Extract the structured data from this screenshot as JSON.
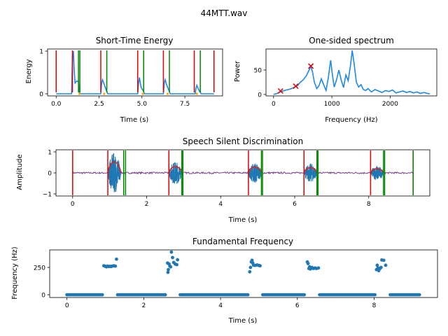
{
  "figure_title": "44MTT.wav",
  "colors": {
    "signal": "#1f77b4",
    "energy": "#1e88e5",
    "start": "#e00000",
    "end": "#008800",
    "marker": "#ffa500",
    "envelope": "#d62728",
    "noise": "#7b3f8c",
    "pitch": "#1f77b4"
  },
  "chart_data": [
    {
      "id": "energy",
      "type": "line",
      "title": "Short-Time Energy",
      "xlabel": "Time (s)",
      "ylabel": "Energy",
      "xlim": [
        -0.5,
        9.7
      ],
      "ylim": [
        -0.05,
        1.05
      ],
      "xticks": [
        0,
        2.5,
        5,
        7.5
      ],
      "xtick_labels": [
        "0.0",
        "2.5",
        "5.0",
        "7.5"
      ],
      "yticks": [
        0,
        1
      ],
      "ytick_labels": [
        "0",
        "1"
      ],
      "x": [
        0,
        0.9,
        0.95,
        1.0,
        1.05,
        1.1,
        1.2,
        1.3,
        1.35,
        1.4,
        2.6,
        2.65,
        2.7,
        2.8,
        2.95,
        3.0,
        4.75,
        4.8,
        4.85,
        4.95,
        5.1,
        5.15,
        6.25,
        6.3,
        6.35,
        6.45,
        6.6,
        6.65,
        8.1,
        8.15,
        8.2,
        8.3,
        8.4,
        8.45,
        9.2
      ],
      "y": [
        0,
        0,
        0.9,
        1.0,
        0.55,
        0.25,
        0.3,
        0.28,
        0.05,
        0,
        0,
        0.25,
        0.33,
        0.22,
        0.05,
        0,
        0,
        0.25,
        0.38,
        0.15,
        0.05,
        0,
        0,
        0.25,
        0.33,
        0.2,
        0.05,
        0,
        0,
        0.13,
        0.2,
        0.1,
        0.03,
        0,
        0
      ],
      "start_lines": [
        0,
        0.95,
        2.6,
        4.75,
        6.25,
        8.05,
        9.2
      ],
      "end_lines": [
        1.3,
        1.38,
        2.95,
        5.1,
        6.6,
        8.4
      ]
    },
    {
      "id": "spectrum",
      "type": "line",
      "title": "One-sided spectrum",
      "xlabel": "Frequency (Hz)",
      "ylabel": "Power",
      "xlim": [
        -130,
        2800
      ],
      "ylim": [
        -3,
        93
      ],
      "xticks": [
        0,
        1000,
        2000
      ],
      "xtick_labels": [
        "0",
        "1000",
        "2000"
      ],
      "yticks": [
        0,
        50
      ],
      "ytick_labels": [
        "0",
        "50"
      ],
      "x": [
        0,
        60,
        110,
        160,
        210,
        260,
        310,
        360,
        410,
        460,
        510,
        560,
        610,
        640,
        670,
        700,
        740,
        780,
        820,
        860,
        900,
        940,
        980,
        1010,
        1040,
        1080,
        1120,
        1160,
        1200,
        1240,
        1280,
        1320,
        1350,
        1380,
        1420,
        1460,
        1500,
        1540,
        1580,
        1620,
        1680,
        1740,
        1800,
        1860,
        1920,
        1980,
        2040,
        2100,
        2160,
        2220,
        2280,
        2340,
        2400,
        2460,
        2520,
        2580,
        2640,
        2680
      ],
      "y": [
        0,
        2,
        5,
        7,
        9,
        10,
        12,
        15,
        18,
        25,
        30,
        38,
        50,
        58,
        45,
        25,
        12,
        18,
        32,
        20,
        8,
        35,
        70,
        40,
        15,
        30,
        50,
        30,
        14,
        40,
        28,
        60,
        90,
        65,
        25,
        15,
        20,
        10,
        8,
        12,
        5,
        10,
        7,
        4,
        8,
        6,
        9,
        3,
        5,
        7,
        4,
        6,
        3,
        5,
        2,
        4,
        2,
        1
      ],
      "markers": {
        "x": [
          120,
          380,
          640
        ],
        "y": [
          7,
          17,
          58
        ]
      }
    },
    {
      "id": "discrimination",
      "type": "line",
      "title": "Speech Silent Discrimination",
      "xlabel": "Time (s)",
      "ylabel": "Amplitude",
      "xlim": [
        -0.45,
        9.65
      ],
      "ylim": [
        -1.1,
        1.1
      ],
      "xticks": [
        0,
        2,
        4,
        6,
        8
      ],
      "xtick_labels": [
        "0",
        "2",
        "4",
        "6",
        "8"
      ],
      "yticks": [
        -1,
        0,
        1
      ],
      "ytick_labels": [
        "−1",
        "0",
        "1"
      ],
      "segments": [
        {
          "start": 0.95,
          "end": 1.3,
          "amp": 0.95
        },
        {
          "start": 2.6,
          "end": 2.95,
          "amp": 0.55
        },
        {
          "start": 4.75,
          "end": 5.1,
          "amp": 0.5
        },
        {
          "start": 6.25,
          "end": 6.6,
          "amp": 0.45
        },
        {
          "start": 8.05,
          "end": 8.4,
          "amp": 0.35
        }
      ],
      "start_lines": [
        0,
        0.95,
        2.6,
        4.75,
        6.25,
        8.05,
        9.2
      ],
      "end_lines": [
        1.38,
        1.43,
        2.95,
        2.98,
        5.1,
        5.13,
        6.6,
        6.63,
        8.4,
        8.43,
        9.2
      ]
    },
    {
      "id": "f0",
      "type": "scatter",
      "title": "Fundamental Frequency",
      "xlabel": "Time (s)",
      "ylabel": "Frequency (Hz)",
      "xlim": [
        -0.45,
        9.65
      ],
      "ylim": [
        -25,
        410
      ],
      "xticks": [
        0,
        2,
        4,
        6,
        8
      ],
      "xtick_labels": [
        "0",
        "2",
        "4",
        "6",
        "8"
      ],
      "yticks": [
        0,
        250
      ],
      "ytick_labels": [
        "0",
        "250"
      ],
      "zero_ranges": [
        [
          0,
          0.95
        ],
        [
          1.32,
          2.58
        ],
        [
          2.95,
          4.72
        ],
        [
          5.1,
          6.22
        ],
        [
          6.58,
          8.03
        ],
        [
          8.42,
          9.2
        ]
      ],
      "voiced_points": [
        [
          0.96,
          265
        ],
        [
          1.0,
          260
        ],
        [
          1.03,
          255
        ],
        [
          1.06,
          262
        ],
        [
          1.09,
          258
        ],
        [
          1.12,
          260
        ],
        [
          1.15,
          258
        ],
        [
          1.18,
          262
        ],
        [
          1.22,
          265
        ],
        [
          1.26,
          262
        ],
        [
          1.29,
          325
        ],
        [
          2.62,
          290
        ],
        [
          2.63,
          205
        ],
        [
          2.64,
          230
        ],
        [
          2.66,
          280
        ],
        [
          2.68,
          262
        ],
        [
          2.7,
          255
        ],
        [
          2.72,
          390
        ],
        [
          2.75,
          340
        ],
        [
          2.78,
          295
        ],
        [
          2.82,
          280
        ],
        [
          2.86,
          275
        ],
        [
          2.88,
          320
        ],
        [
          4.76,
          210
        ],
        [
          4.78,
          250
        ],
        [
          4.8,
          300
        ],
        [
          4.82,
          315
        ],
        [
          4.84,
          290
        ],
        [
          4.86,
          270
        ],
        [
          4.9,
          268
        ],
        [
          4.95,
          272
        ],
        [
          5.0,
          268
        ],
        [
          5.03,
          265
        ],
        [
          6.26,
          300
        ],
        [
          6.28,
          285
        ],
        [
          6.3,
          240
        ],
        [
          6.32,
          255
        ],
        [
          6.34,
          235
        ],
        [
          6.38,
          250
        ],
        [
          6.42,
          240
        ],
        [
          6.46,
          245
        ],
        [
          6.5,
          240
        ],
        [
          6.55,
          245
        ],
        [
          8.06,
          230
        ],
        [
          8.08,
          270
        ],
        [
          8.1,
          245
        ],
        [
          8.12,
          220
        ],
        [
          8.15,
          240
        ],
        [
          8.18,
          250
        ],
        [
          8.2,
          318
        ],
        [
          8.25,
          315
        ],
        [
          8.3,
          270
        ]
      ]
    }
  ]
}
